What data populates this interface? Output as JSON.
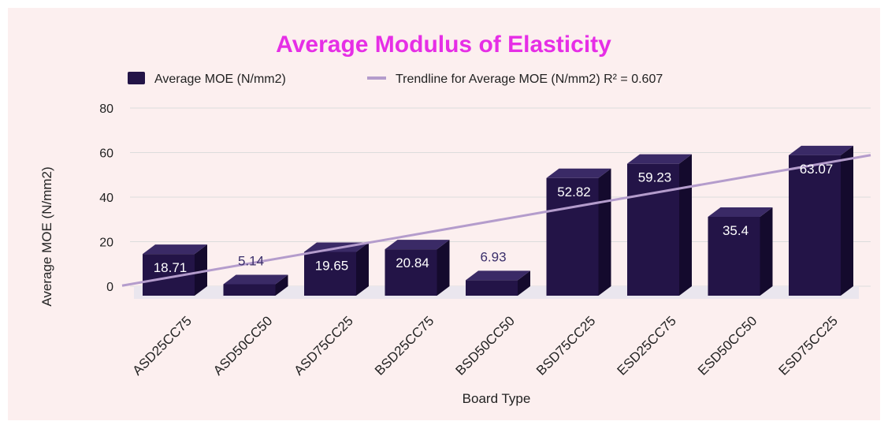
{
  "chart_data": {
    "type": "bar",
    "title": "Average Modulus of Elasticity",
    "xlabel": "Board Type",
    "ylabel": "Average MOE (N/mm2)",
    "ylim": [
      0,
      80
    ],
    "yticks": [
      "0",
      "20",
      "40",
      "60",
      "80"
    ],
    "grid": true,
    "legend_position": "top",
    "categories": [
      "ASD25CC75",
      "ASD50CC50",
      "ASD75CC25",
      "BSD25CC75",
      "BSD50CC50",
      "BSD75CC25",
      "ESD25CC75",
      "ESD50CC50",
      "ESD75CC25"
    ],
    "series": [
      {
        "name": "Average MOE (N/mm2)",
        "values": [
          18.71,
          5.14,
          19.65,
          20.84,
          6.93,
          52.82,
          59.23,
          35.4,
          63.07
        ],
        "labels": [
          "18.71",
          "5.14",
          "19.65",
          "20.84",
          "6.93",
          "52.82",
          "59.23",
          "35.4",
          "63.07"
        ]
      }
    ],
    "trendline": {
      "name": "Trendline for Average MOE (N/mm2) R² = 0.607",
      "type": "linear",
      "r_squared": 0.607
    },
    "colors": {
      "bar_front": "#231447",
      "bar_side": "#140a2d",
      "bar_top": "#3a2a66",
      "trendline": "#b49ccc",
      "title": "#e62ee6",
      "background": "#fcefef",
      "gridline": "#dcdcdc",
      "label_inside": "#ffffff",
      "label_outside": "#3b2f6b"
    }
  }
}
